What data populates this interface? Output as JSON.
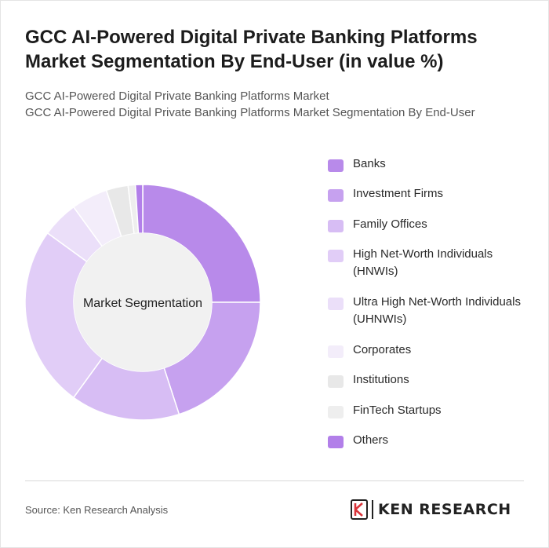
{
  "title": "GCC AI-Powered Digital Private Banking Platforms Market Segmentation By End-User (in value %)",
  "subtitle_lines": [
    "GCC AI-Powered Digital Private Banking Platforms Market",
    "GCC AI-Powered Digital Private Banking Platforms Market Segmentation By End-User"
  ],
  "footer": {
    "source": "Source: Ken Research Analysis",
    "brand": "KEN RESEARCH"
  },
  "chart_data": {
    "type": "pie",
    "donut": true,
    "center_label": "Market Segmentation",
    "legend_position": "right",
    "categories": [
      "Banks",
      "Investment Firms",
      "Family Offices",
      "High Net-Worth Individuals (HNWIs)",
      "Ultra High Net-Worth Individuals (UHNWIs)",
      "Corporates",
      "Institutions",
      "FinTech Startups",
      "Others"
    ],
    "values": [
      25,
      20,
      15,
      25,
      5,
      5,
      3,
      1,
      1
    ],
    "colors": [
      "#b88aea",
      "#c6a1ef",
      "#d7bdf4",
      "#e1cdf7",
      "#ebdff9",
      "#f3edfa",
      "#e8e8e8",
      "#eeeeee",
      "#b27fe9"
    ]
  }
}
